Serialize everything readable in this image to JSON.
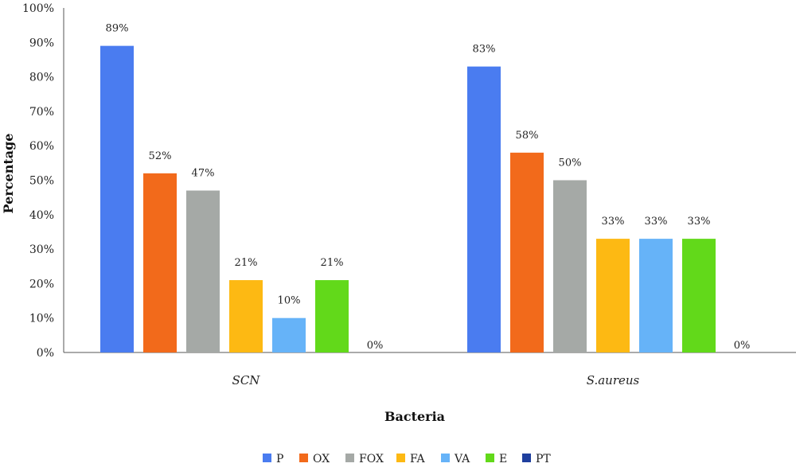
{
  "chart_data": {
    "type": "bar",
    "title": "",
    "xlabel": "Bacteria",
    "ylabel": "Percentage",
    "ylim": [
      0,
      100
    ],
    "yticks": [
      "0%",
      "10%",
      "20%",
      "30%",
      "40%",
      "50%",
      "60%",
      "70%",
      "80%",
      "90%",
      "100%"
    ],
    "categories": [
      "SCN",
      "S.aureus"
    ],
    "legend_position": "bottom",
    "grid": false,
    "series": [
      {
        "name": "P",
        "color": "#4a7cf0",
        "values": [
          89,
          83
        ],
        "labels": [
          "89%",
          "83%"
        ]
      },
      {
        "name": "OX",
        "color": "#f26a1b",
        "values": [
          52,
          58
        ],
        "labels": [
          "52%",
          "58%"
        ]
      },
      {
        "name": "FOX",
        "color": "#a5a9a6",
        "values": [
          47,
          50
        ],
        "labels": [
          "47%",
          "50%"
        ]
      },
      {
        "name": "FA",
        "color": "#fdb913",
        "values": [
          21,
          33
        ],
        "labels": [
          "21%",
          "33%"
        ]
      },
      {
        "name": "VA",
        "color": "#66b3f8",
        "values": [
          10,
          33
        ],
        "labels": [
          "10%",
          "33%"
        ]
      },
      {
        "name": "E",
        "color": "#62d91a",
        "values": [
          21,
          33
        ],
        "labels": [
          "21%",
          "33%"
        ]
      },
      {
        "name": "PT",
        "color": "#1f3f9e",
        "values": [
          0,
          0
        ],
        "labels": [
          "0%",
          "0%"
        ]
      }
    ]
  }
}
